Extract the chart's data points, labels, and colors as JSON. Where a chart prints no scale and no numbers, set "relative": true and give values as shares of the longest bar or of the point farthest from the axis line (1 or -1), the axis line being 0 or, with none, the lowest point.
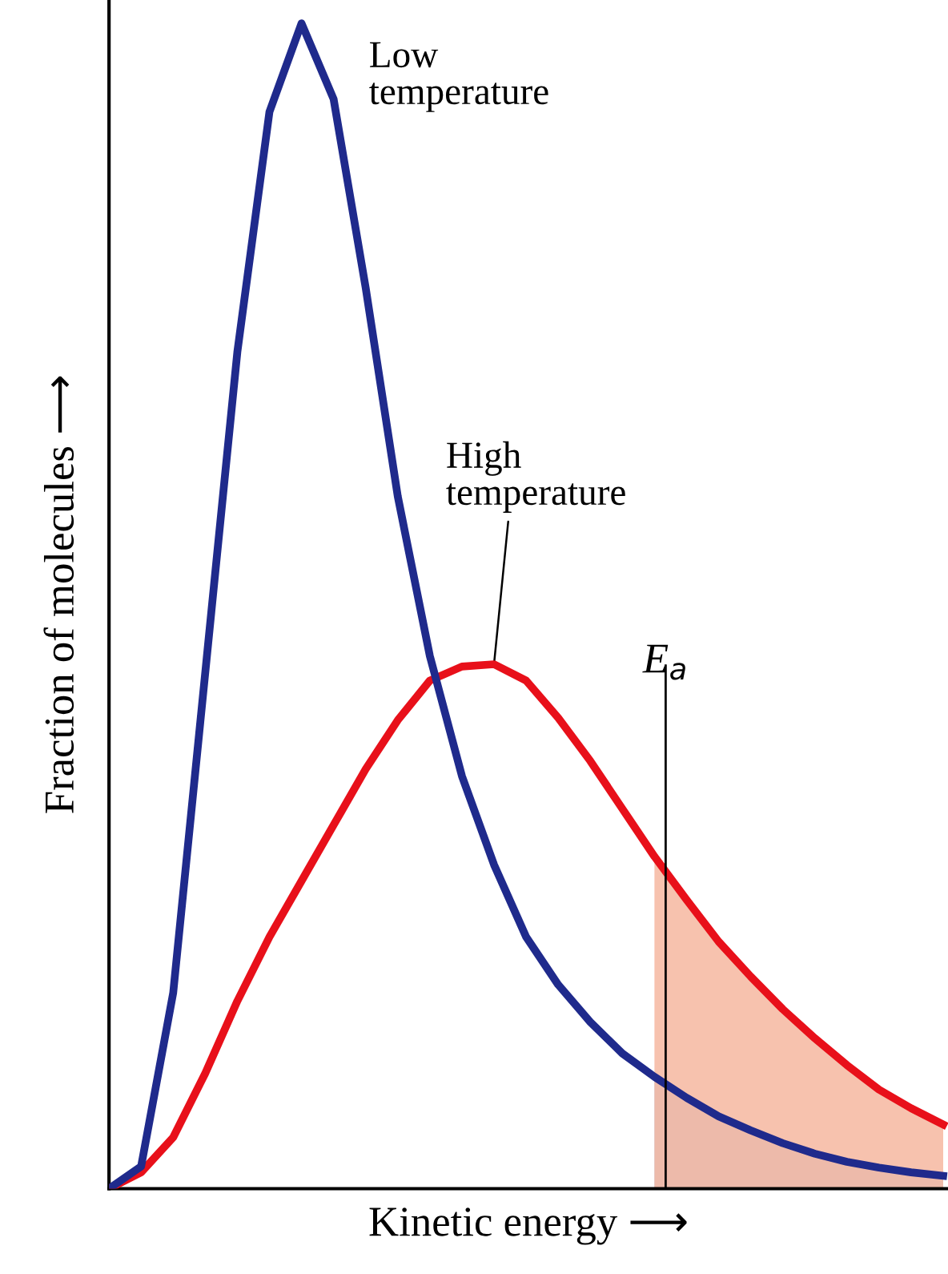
{
  "chart_data": {
    "type": "line",
    "relative": true,
    "xlabel": "Kinetic energy ⟶",
    "ylabel": "Fraction of molecules ⟶",
    "categories": [
      null,
      null,
      null,
      null,
      null,
      null,
      null,
      null,
      null,
      null,
      null,
      null,
      null,
      null,
      null,
      null,
      null,
      null,
      null,
      null,
      null,
      null,
      null,
      null,
      null,
      null,
      null
    ],
    "series": [
      {
        "name": "Low temperature",
        "color": "#1f2a8c",
        "values": [
          0,
          0.019,
          0.168,
          0.443,
          0.718,
          0.924,
          1.0,
          0.935,
          0.773,
          0.594,
          0.457,
          0.354,
          0.278,
          0.216,
          0.175,
          0.143,
          0.116,
          0.096,
          0.078,
          0.062,
          0.05,
          0.039,
          0.03,
          0.023,
          0.018,
          0.014,
          0.011
        ]
      },
      {
        "name": "High temperature",
        "color": "#e8101a",
        "values": [
          0,
          0.014,
          0.044,
          0.099,
          0.161,
          0.216,
          0.264,
          0.312,
          0.36,
          0.402,
          0.436,
          0.448,
          0.45,
          0.436,
          0.404,
          0.367,
          0.326,
          0.285,
          0.248,
          0.212,
          0.182,
          0.154,
          0.129,
          0.106,
          0.085,
          0.069,
          0.055
        ]
      },
      {
        "type": "area",
        "color": "#b3bcdc",
        "values": [
          null,
          null,
          null,
          null,
          null,
          null,
          null,
          null,
          null,
          null,
          null,
          null,
          null,
          null,
          null,
          null,
          null,
          0.096,
          0.078,
          0.062,
          0.05,
          0.039,
          0.03,
          0.023,
          0.018,
          0.014,
          0.011
        ]
      },
      {
        "type": "area",
        "color": "#f6b7a0",
        "values": [
          null,
          null,
          null,
          null,
          null,
          null,
          null,
          null,
          null,
          null,
          null,
          null,
          null,
          null,
          null,
          null,
          null,
          0.285,
          0.248,
          0.212,
          0.182,
          0.154,
          0.129,
          0.106,
          0.085,
          0.069,
          0.055
        ]
      }
    ],
    "annotations": [
      "E$_{a}$"
    ],
    "marker": "none",
    "line_style": "solid",
    "legend": false
  }
}
